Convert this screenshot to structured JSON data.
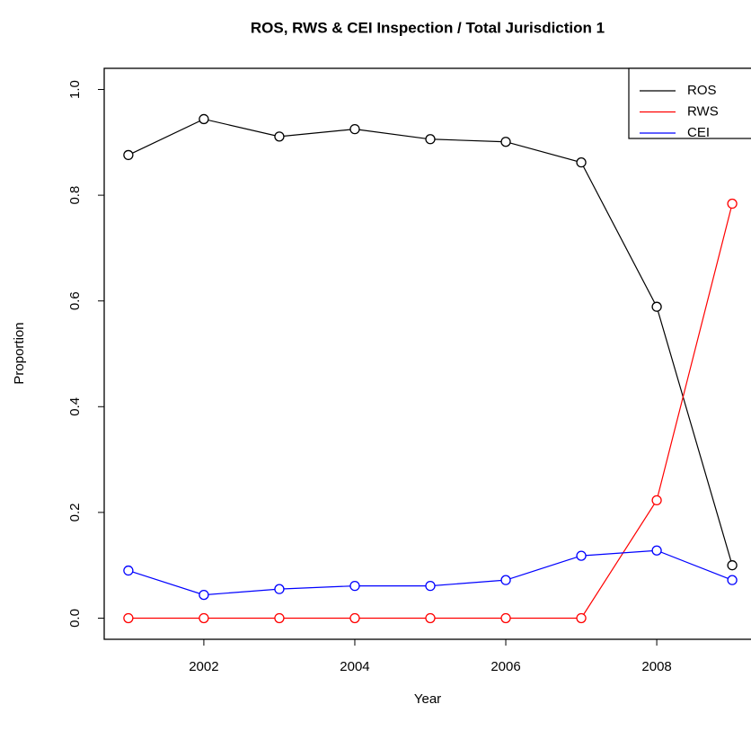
{
  "chart_data": {
    "type": "line",
    "title": "ROS, RWS & CEI Inspection / Total  Jurisdiction 1",
    "x_label": "Year",
    "y_label": "Proportion",
    "x": [
      2001,
      2002,
      2003,
      2004,
      2005,
      2006,
      2007,
      2008,
      2009
    ],
    "series": [
      {
        "name": "ROS",
        "color": "#000000",
        "values": [
          0.876,
          0.944,
          0.911,
          0.925,
          0.906,
          0.901,
          0.862,
          0.589,
          0.1
        ]
      },
      {
        "name": "RWS",
        "color": "#ff0000",
        "values": [
          0,
          0,
          0,
          0,
          0,
          0,
          0,
          0.223,
          0.784
        ]
      },
      {
        "name": "CEI",
        "color": "#0000ff",
        "values": [
          0.09,
          0.044,
          0.055,
          0.061,
          0.061,
          0.072,
          0.118,
          0.128,
          0.072
        ]
      }
    ],
    "xlim": [
      2000.68,
      2009.32
    ],
    "xticks": [
      2002,
      2004,
      2006,
      2008
    ],
    "ylim": [
      -0.04,
      1.04
    ],
    "yticks": [
      {
        "value": 0,
        "label": "0.0"
      },
      0.2,
      0.4,
      0.6,
      0.8,
      {
        "value": 1,
        "label": "1.0"
      }
    ],
    "legend": "top-right"
  }
}
